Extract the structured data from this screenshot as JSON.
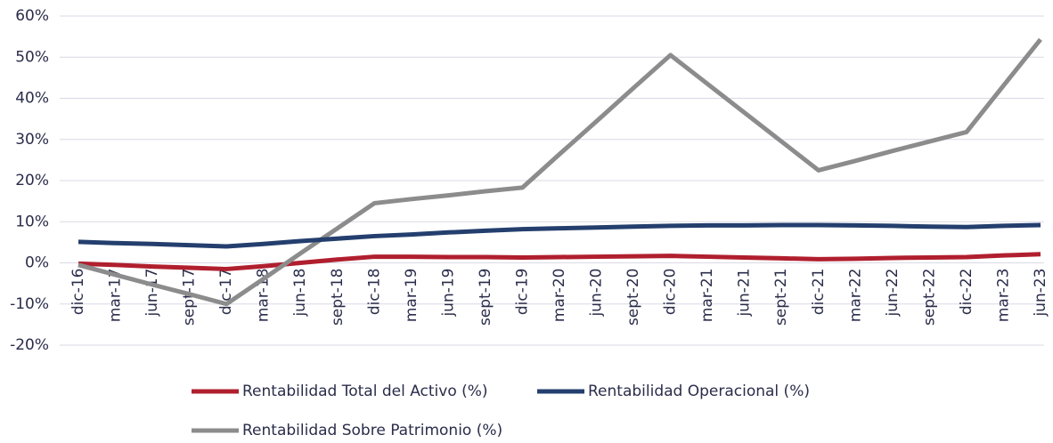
{
  "chart_data": {
    "type": "line",
    "categories": [
      "dic-16",
      "mar-17",
      "jun-17",
      "sept-17",
      "dic-17",
      "mar-18",
      "jun-18",
      "sept-18",
      "dic-18",
      "mar-19",
      "jun-19",
      "sept-19",
      "dic-19",
      "mar-20",
      "jun-20",
      "sept-20",
      "dic-20",
      "mar-21",
      "jun-21",
      "sept-21",
      "dic-21",
      "mar-22",
      "jun-22",
      "sept-22",
      "dic-22",
      "mar-23",
      "jun-23"
    ],
    "series": [
      {
        "name": "Rentabilidad Total del Activo (%)",
        "color": "#b01f2e",
        "values": [
          -0.2,
          -0.5,
          -0.9,
          -1.2,
          -1.5,
          -0.8,
          0,
          0.8,
          1.5,
          1.5,
          1.4,
          1.4,
          1.3,
          1.4,
          1.5,
          1.6,
          1.7,
          1.5,
          1.3,
          1.1,
          0.9,
          1.0,
          1.2,
          1.3,
          1.4,
          1.8,
          2.1
        ]
      },
      {
        "name": "Rentabilidad Operacional (%)",
        "color": "#243f6e",
        "values": [
          5.1,
          4.8,
          4.6,
          4.3,
          4.0,
          4.6,
          5.3,
          5.9,
          6.5,
          6.9,
          7.4,
          7.8,
          8.2,
          8.4,
          8.6,
          8.8,
          9.0,
          9.1,
          9.1,
          9.2,
          9.2,
          9.1,
          9.0,
          8.8,
          8.7,
          9.0,
          9.2
        ]
      },
      {
        "name": "Rentabilidad Sobre Patrimonio (%)",
        "color": "#8c8c8c",
        "values": [
          -0.5,
          -2.9,
          -5.3,
          -7.6,
          -10,
          -3.9,
          2.3,
          8.4,
          14.5,
          15.5,
          16.4,
          17.4,
          18.3,
          26.4,
          34.4,
          42.5,
          50.5,
          43.5,
          36.5,
          29.5,
          22.5,
          24.8,
          27.2,
          29.5,
          31.8,
          43.1,
          54.3
        ]
      }
    ],
    "ylim": [
      -20,
      60
    ],
    "yticks": [
      {
        "value": -20,
        "label": "-20%"
      },
      {
        "value": -10,
        "label": "-10%"
      },
      {
        "value": 0,
        "label": "0%"
      },
      {
        "value": 10,
        "label": "10%"
      },
      {
        "value": 20,
        "label": "20%"
      },
      {
        "value": 30,
        "label": "30%"
      },
      {
        "value": 40,
        "label": "40%"
      },
      {
        "value": 50,
        "label": "50%"
      },
      {
        "value": 60,
        "label": "60%"
      }
    ],
    "grid": true,
    "legend": "bottom"
  }
}
